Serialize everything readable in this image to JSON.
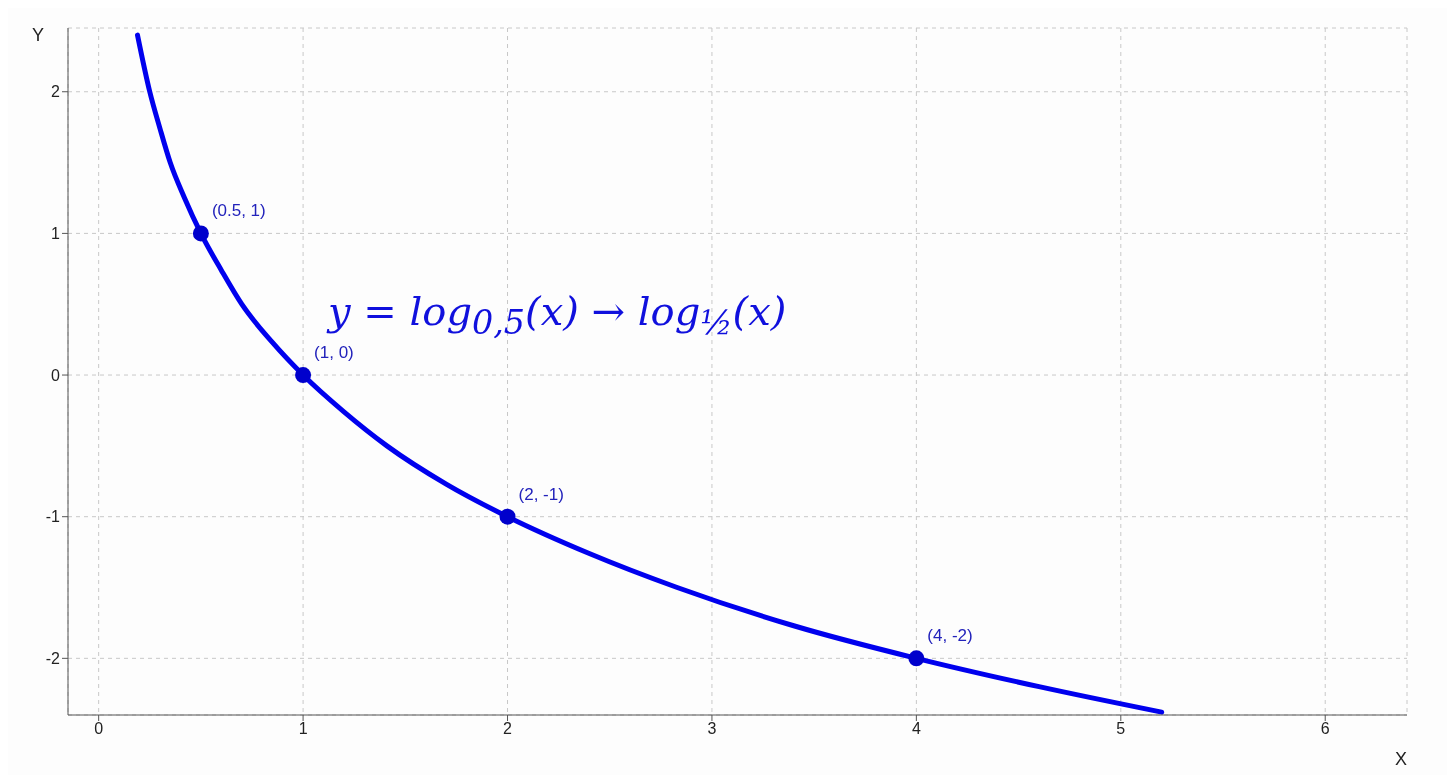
{
  "chart_data": {
    "type": "line",
    "xlabel": "X",
    "ylabel": "Y",
    "series": [
      {
        "color": "#0000ee",
        "marker": "none",
        "x": [
          0.19,
          0.25,
          0.3,
          0.35,
          0.42,
          0.5,
          0.6,
          0.7,
          0.85,
          1,
          1.2,
          1.41,
          1.7,
          2,
          2.4,
          2.83,
          3.4,
          4,
          4.6,
          5.2
        ],
        "values": [
          2.4,
          2,
          1.74,
          1.5,
          1.25,
          1,
          0.74,
          0.5,
          0.23,
          0,
          -0.26,
          -0.5,
          -0.77,
          -1,
          -1.26,
          -1.5,
          -1.77,
          -2,
          -2.2,
          -2.38
        ]
      },
      {
        "type": "scatter",
        "color": "#0000cc",
        "marker": "circle",
        "x": [
          0.5,
          1,
          2,
          4
        ],
        "values": [
          1,
          0,
          -1,
          -2
        ]
      }
    ],
    "annotations": [
      {
        "text": "(0.5, 1)",
        "x": 0.5,
        "y": 1
      },
      {
        "text": "(1, 0)",
        "x": 1,
        "y": 0
      },
      {
        "text": "(2, -1)",
        "x": 2,
        "y": -1
      },
      {
        "text": "(4, -2)",
        "x": 4,
        "y": -2
      },
      "y = log$_{0,5}$(x) → log$_{½}$(x)"
    ],
    "xlim": [
      -0.15,
      6.4
    ],
    "ylim": [
      -2.4,
      2.45
    ],
    "xticks": [
      0,
      1,
      2,
      3,
      4,
      5,
      6
    ],
    "yticks": [
      -2,
      -1,
      0,
      1,
      2
    ],
    "grid": true
  }
}
